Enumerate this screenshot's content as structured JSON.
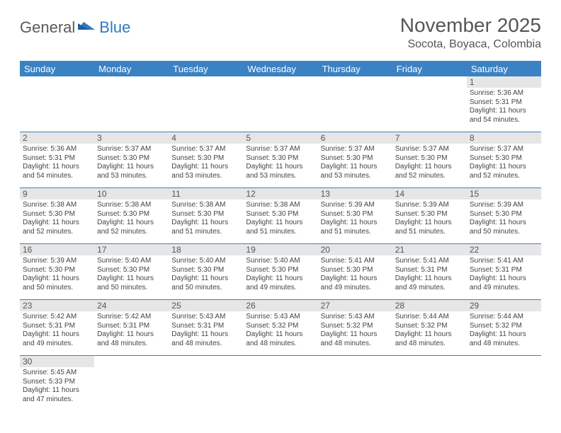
{
  "logo": {
    "text1": "General",
    "text2": "Blue"
  },
  "header": {
    "month_title": "November 2025",
    "location": "Socota, Boyaca, Colombia"
  },
  "colors": {
    "header_bar": "#3b82c4",
    "row_divider": "#3b82c4",
    "daynum_bg": "#e6e6e6",
    "text": "#444444",
    "logo_gray": "#5a5a5a",
    "logo_blue": "#2e7bc0"
  },
  "dayHeaders": [
    "Sunday",
    "Monday",
    "Tuesday",
    "Wednesday",
    "Thursday",
    "Friday",
    "Saturday"
  ],
  "weeks": [
    [
      null,
      null,
      null,
      null,
      null,
      null,
      {
        "n": "1",
        "sr": "5:36 AM",
        "ss": "5:31 PM",
        "dl": "11 hours and 54 minutes."
      }
    ],
    [
      {
        "n": "2",
        "sr": "5:36 AM",
        "ss": "5:31 PM",
        "dl": "11 hours and 54 minutes."
      },
      {
        "n": "3",
        "sr": "5:37 AM",
        "ss": "5:30 PM",
        "dl": "11 hours and 53 minutes."
      },
      {
        "n": "4",
        "sr": "5:37 AM",
        "ss": "5:30 PM",
        "dl": "11 hours and 53 minutes."
      },
      {
        "n": "5",
        "sr": "5:37 AM",
        "ss": "5:30 PM",
        "dl": "11 hours and 53 minutes."
      },
      {
        "n": "6",
        "sr": "5:37 AM",
        "ss": "5:30 PM",
        "dl": "11 hours and 53 minutes."
      },
      {
        "n": "7",
        "sr": "5:37 AM",
        "ss": "5:30 PM",
        "dl": "11 hours and 52 minutes."
      },
      {
        "n": "8",
        "sr": "5:37 AM",
        "ss": "5:30 PM",
        "dl": "11 hours and 52 minutes."
      }
    ],
    [
      {
        "n": "9",
        "sr": "5:38 AM",
        "ss": "5:30 PM",
        "dl": "11 hours and 52 minutes."
      },
      {
        "n": "10",
        "sr": "5:38 AM",
        "ss": "5:30 PM",
        "dl": "11 hours and 52 minutes."
      },
      {
        "n": "11",
        "sr": "5:38 AM",
        "ss": "5:30 PM",
        "dl": "11 hours and 51 minutes."
      },
      {
        "n": "12",
        "sr": "5:38 AM",
        "ss": "5:30 PM",
        "dl": "11 hours and 51 minutes."
      },
      {
        "n": "13",
        "sr": "5:39 AM",
        "ss": "5:30 PM",
        "dl": "11 hours and 51 minutes."
      },
      {
        "n": "14",
        "sr": "5:39 AM",
        "ss": "5:30 PM",
        "dl": "11 hours and 51 minutes."
      },
      {
        "n": "15",
        "sr": "5:39 AM",
        "ss": "5:30 PM",
        "dl": "11 hours and 50 minutes."
      }
    ],
    [
      {
        "n": "16",
        "sr": "5:39 AM",
        "ss": "5:30 PM",
        "dl": "11 hours and 50 minutes."
      },
      {
        "n": "17",
        "sr": "5:40 AM",
        "ss": "5:30 PM",
        "dl": "11 hours and 50 minutes."
      },
      {
        "n": "18",
        "sr": "5:40 AM",
        "ss": "5:30 PM",
        "dl": "11 hours and 50 minutes."
      },
      {
        "n": "19",
        "sr": "5:40 AM",
        "ss": "5:30 PM",
        "dl": "11 hours and 49 minutes."
      },
      {
        "n": "20",
        "sr": "5:41 AM",
        "ss": "5:30 PM",
        "dl": "11 hours and 49 minutes."
      },
      {
        "n": "21",
        "sr": "5:41 AM",
        "ss": "5:31 PM",
        "dl": "11 hours and 49 minutes."
      },
      {
        "n": "22",
        "sr": "5:41 AM",
        "ss": "5:31 PM",
        "dl": "11 hours and 49 minutes."
      }
    ],
    [
      {
        "n": "23",
        "sr": "5:42 AM",
        "ss": "5:31 PM",
        "dl": "11 hours and 49 minutes."
      },
      {
        "n": "24",
        "sr": "5:42 AM",
        "ss": "5:31 PM",
        "dl": "11 hours and 48 minutes."
      },
      {
        "n": "25",
        "sr": "5:43 AM",
        "ss": "5:31 PM",
        "dl": "11 hours and 48 minutes."
      },
      {
        "n": "26",
        "sr": "5:43 AM",
        "ss": "5:32 PM",
        "dl": "11 hours and 48 minutes."
      },
      {
        "n": "27",
        "sr": "5:43 AM",
        "ss": "5:32 PM",
        "dl": "11 hours and 48 minutes."
      },
      {
        "n": "28",
        "sr": "5:44 AM",
        "ss": "5:32 PM",
        "dl": "11 hours and 48 minutes."
      },
      {
        "n": "29",
        "sr": "5:44 AM",
        "ss": "5:32 PM",
        "dl": "11 hours and 48 minutes."
      }
    ],
    [
      {
        "n": "30",
        "sr": "5:45 AM",
        "ss": "5:33 PM",
        "dl": "11 hours and 47 minutes."
      },
      null,
      null,
      null,
      null,
      null,
      null
    ]
  ],
  "labels": {
    "sunrise": "Sunrise:",
    "sunset": "Sunset:",
    "daylight": "Daylight:"
  }
}
